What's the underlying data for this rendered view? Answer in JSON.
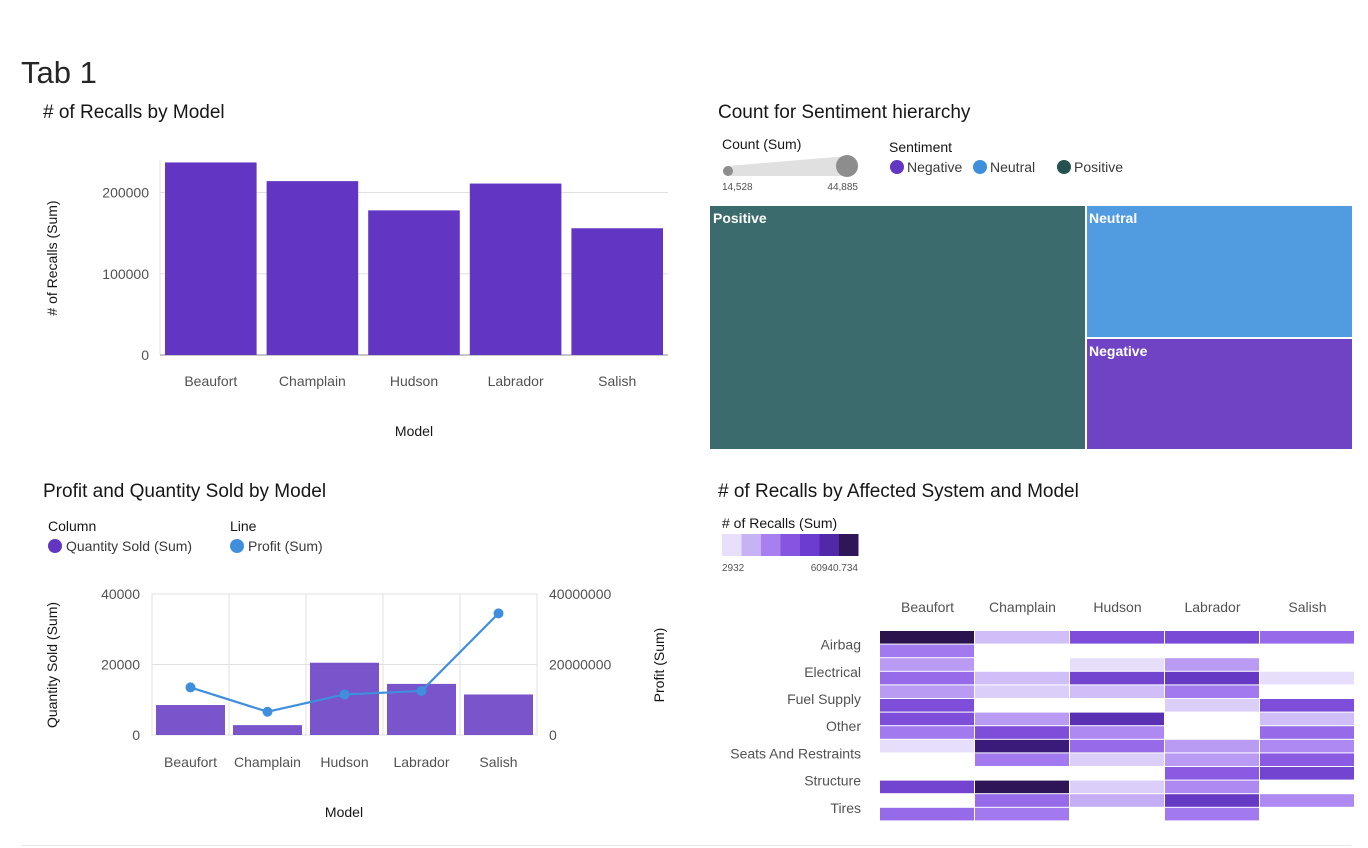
{
  "page": {
    "title": "Tab 1"
  },
  "colors": {
    "purple": "#6236c2",
    "blue": "#3f8fdc",
    "teal": "#3b6b6d",
    "neutral_tile": "#519be0",
    "negative_tile": "#6f43c4"
  },
  "chart_data": [
    {
      "id": "recalls_by_model",
      "type": "bar",
      "title": "# of Recalls by Model",
      "xlabel": "Model",
      "ylabel": "# of Recalls (Sum)",
      "categories": [
        "Beaufort",
        "Champlain",
        "Hudson",
        "Labrador",
        "Salish"
      ],
      "values": [
        237000,
        214000,
        178000,
        211000,
        156000
      ],
      "ylim": [
        0,
        240000
      ],
      "yticks": [
        "0",
        "100000",
        "200000"
      ],
      "ytick_values": [
        0,
        100000,
        200000
      ],
      "grid": true
    },
    {
      "id": "sentiment_hierarchy",
      "type": "treemap",
      "title": "Count for Sentiment hierarchy",
      "size_legend": {
        "title": "Count (Sum)",
        "min_label": "14,528",
        "max_label": "44,885"
      },
      "color_legend": {
        "title": "Sentiment",
        "entries": [
          "Negative",
          "Neutral",
          "Positive"
        ]
      },
      "items": [
        {
          "label": "Positive",
          "value": 44885
        },
        {
          "label": "Neutral",
          "value": 17500
        },
        {
          "label": "Negative",
          "value": 14528
        }
      ]
    },
    {
      "id": "profit_quantity_by_model",
      "type": "bar",
      "title": "Profit and Quantity Sold by Model",
      "xlabel": "Model",
      "ylabel": "Quantity Sold (Sum)",
      "y2label": "Profit (Sum)",
      "legend_groups": [
        {
          "title": "Column",
          "label": "Quantity Sold (Sum)"
        },
        {
          "title": "Line",
          "label": "Profit (Sum)"
        }
      ],
      "categories": [
        "Beaufort",
        "Champlain",
        "Hudson",
        "Labrador",
        "Salish"
      ],
      "series": [
        {
          "name": "Quantity Sold (Sum)",
          "type": "bar",
          "values": [
            8500,
            2800,
            20500,
            14500,
            11500
          ]
        },
        {
          "name": "Profit (Sum)",
          "type": "line",
          "values": [
            13500000,
            6600000,
            11500000,
            12500000,
            34500000
          ]
        }
      ],
      "ylim": [
        0,
        40000
      ],
      "y2lim": [
        0,
        40000000
      ],
      "yticks": [
        "0",
        "20000",
        "40000"
      ],
      "y2ticks": [
        "0",
        "20000000",
        "40000000"
      ],
      "grid": true
    },
    {
      "id": "recalls_heatmap",
      "type": "heatmap",
      "title": "# of Recalls by Affected System and Model",
      "legend": {
        "title": "# of Recalls (Sum)",
        "min_label": "2932",
        "max_label": "60940.734"
      },
      "columns": [
        "Beaufort",
        "Champlain",
        "Hudson",
        "Labrador",
        "Salish"
      ],
      "row_labels": [
        "Airbag",
        "Electrical",
        "Fuel Supply",
        "Other",
        "Seats And Restraints",
        "Structure",
        "Tires"
      ],
      "intensity_rows": [
        [
          1.0,
          0.25,
          0.6,
          0.62,
          0.5
        ],
        [
          0.45,
          0.0,
          0.0,
          0.0,
          0.0
        ],
        [
          0.35,
          0.0,
          0.15,
          0.35,
          0.0
        ],
        [
          0.5,
          0.25,
          0.65,
          0.7,
          0.15
        ],
        [
          0.35,
          0.2,
          0.25,
          0.45,
          0.0
        ],
        [
          0.6,
          0.0,
          0.0,
          0.2,
          0.6
        ],
        [
          0.6,
          0.35,
          0.75,
          0.0,
          0.25
        ],
        [
          0.45,
          0.6,
          0.4,
          0.0,
          0.5
        ],
        [
          0.15,
          0.9,
          0.5,
          0.35,
          0.4
        ],
        [
          0.0,
          0.45,
          0.2,
          0.35,
          0.55
        ],
        [
          0.0,
          0.0,
          0.0,
          0.55,
          0.65
        ],
        [
          0.65,
          0.98,
          0.2,
          0.4,
          0.0
        ],
        [
          0.0,
          0.5,
          0.3,
          0.7,
          0.4
        ],
        [
          0.5,
          0.45,
          0.0,
          0.45,
          0.0
        ]
      ]
    }
  ]
}
